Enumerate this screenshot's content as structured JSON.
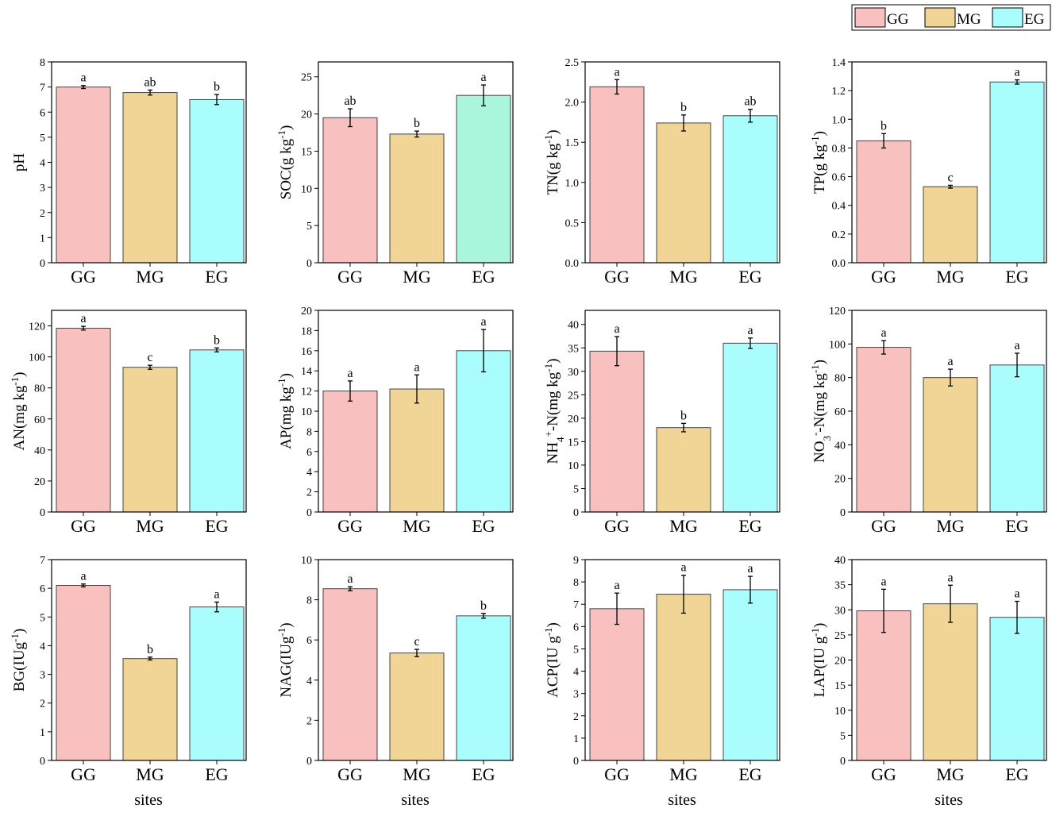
{
  "legend": {
    "entries": [
      {
        "label": "GG",
        "color": "#f9c0c0"
      },
      {
        "label": "MG",
        "color": "#f1d596"
      },
      {
        "label": "EG",
        "color": "#a9fdfd"
      }
    ]
  },
  "x_title": "sites",
  "chart_data": [
    {
      "type": "bar",
      "ylabel": "pH",
      "ylim": [
        0,
        8
      ],
      "yticks": [
        "0",
        "1",
        "2",
        "3",
        "4",
        "5",
        "6",
        "7",
        "8"
      ],
      "categories": [
        "GG",
        "MG",
        "EG"
      ],
      "values": [
        7.0,
        6.78,
        6.5
      ],
      "errors": [
        0.06,
        0.1,
        0.2
      ],
      "letters": [
        "a",
        "ab",
        "b"
      ]
    },
    {
      "type": "bar",
      "ylabel": "SOC(g kg",
      "ylabel_sup": "-1",
      "ylabel_end": ")",
      "ylim": [
        0,
        27
      ],
      "yticks": [
        "0",
        "5",
        "10",
        "15",
        "20",
        "25"
      ],
      "categories": [
        "GG",
        "MG",
        "EG"
      ],
      "values": [
        19.5,
        17.3,
        22.5
      ],
      "errors": [
        1.2,
        0.4,
        1.4
      ],
      "letters": [
        "ab",
        "b",
        "a"
      ],
      "colors": [
        "#f9c0c0",
        "#f1d596",
        "#a9f6dc"
      ]
    },
    {
      "type": "bar",
      "ylabel": "TN(g kg",
      "ylabel_sup": "-1",
      "ylabel_end": ")",
      "ylim": [
        0,
        2.5
      ],
      "yticks": [
        "0.0",
        "0.5",
        "1.0",
        "1.5",
        "2.0",
        "2.5"
      ],
      "categories": [
        "GG",
        "MG",
        "EG"
      ],
      "values": [
        2.19,
        1.74,
        1.83
      ],
      "errors": [
        0.09,
        0.1,
        0.08
      ],
      "letters": [
        "a",
        "b",
        "ab"
      ]
    },
    {
      "type": "bar",
      "ylabel": "TP(g kg",
      "ylabel_sup": "-1",
      "ylabel_end": ")",
      "ylim": [
        0,
        1.4
      ],
      "yticks": [
        "0.0",
        "0.2",
        "0.4",
        "0.6",
        "0.8",
        "1.0",
        "1.2",
        "1.4"
      ],
      "categories": [
        "GG",
        "MG",
        "EG"
      ],
      "values": [
        0.85,
        0.53,
        1.26
      ],
      "errors": [
        0.05,
        0.01,
        0.015
      ],
      "letters": [
        "b",
        "c",
        "a"
      ]
    },
    {
      "type": "bar",
      "ylabel": "AN(mg kg",
      "ylabel_sup": "-1",
      "ylabel_end": ")",
      "ylim": [
        0,
        130
      ],
      "yticks": [
        "0",
        "20",
        "40",
        "60",
        "80",
        "100",
        "120"
      ],
      "categories": [
        "GG",
        "MG",
        "EG"
      ],
      "values": [
        118.5,
        93.3,
        104.5
      ],
      "errors": [
        1.2,
        1.3,
        1.3
      ],
      "letters": [
        "a",
        "c",
        "b"
      ]
    },
    {
      "type": "bar",
      "ylabel": "AP(mg kg",
      "ylabel_sup": "-1",
      "ylabel_end": ")",
      "ylim": [
        0,
        20
      ],
      "yticks": [
        "0",
        "2",
        "4",
        "6",
        "8",
        "10",
        "12",
        "14",
        "16",
        "18",
        "20"
      ],
      "categories": [
        "GG",
        "MG",
        "EG"
      ],
      "values": [
        12.0,
        12.2,
        16.0
      ],
      "errors": [
        1.0,
        1.4,
        2.1
      ],
      "letters": [
        "a",
        "a",
        "a"
      ]
    },
    {
      "type": "bar",
      "ylabel": "NH",
      "ylabel_sub": "4",
      "ylabel_sup": "+",
      "ylabel_end": "-N(mg kg",
      "ylabel_sup2": "-1",
      "ylabel_end2": ")",
      "ylim": [
        0,
        43
      ],
      "yticks": [
        "0",
        "5",
        "10",
        "15",
        "20",
        "25",
        "30",
        "35",
        "40"
      ],
      "categories": [
        "GG",
        "MG",
        "EG"
      ],
      "values": [
        34.3,
        18.0,
        36.0
      ],
      "errors": [
        3.1,
        0.9,
        1.1
      ],
      "letters": [
        "a",
        "b",
        "a"
      ]
    },
    {
      "type": "bar",
      "ylabel": "NO",
      "ylabel_sub": "3",
      "ylabel_sup": "-",
      "ylabel_end": "-N(mg kg",
      "ylabel_sup2": "-1",
      "ylabel_end2": ")",
      "ylim": [
        0,
        120
      ],
      "yticks": [
        "0",
        "20",
        "40",
        "60",
        "80",
        "100",
        "120"
      ],
      "categories": [
        "GG",
        "MG",
        "EG"
      ],
      "values": [
        98.0,
        80.0,
        87.5
      ],
      "errors": [
        4.0,
        5.0,
        7.0
      ],
      "letters": [
        "a",
        "a",
        "a"
      ]
    },
    {
      "type": "bar",
      "ylabel": "BG(IUg",
      "ylabel_sup": "-1",
      "ylabel_end": ")",
      "ylim": [
        0,
        7
      ],
      "yticks": [
        "0",
        "1",
        "2",
        "3",
        "4",
        "5",
        "6",
        "7"
      ],
      "categories": [
        "GG",
        "MG",
        "EG"
      ],
      "values": [
        6.1,
        3.55,
        5.35
      ],
      "errors": [
        0.05,
        0.05,
        0.17
      ],
      "letters": [
        "a",
        "b",
        "a"
      ]
    },
    {
      "type": "bar",
      "ylabel": "NAG(IUg",
      "ylabel_sup": "-1",
      "ylabel_end": ")",
      "ylim": [
        0,
        10
      ],
      "yticks": [
        "0",
        "2",
        "4",
        "6",
        "8",
        "10"
      ],
      "categories": [
        "GG",
        "MG",
        "EG"
      ],
      "values": [
        8.55,
        5.35,
        7.2
      ],
      "errors": [
        0.1,
        0.18,
        0.12
      ],
      "letters": [
        "a",
        "c",
        "b"
      ]
    },
    {
      "type": "bar",
      "ylabel": "ACP(IU g",
      "ylabel_sup": "-1",
      "ylabel_end": ")",
      "ylim": [
        0,
        9
      ],
      "yticks": [
        "0",
        "1",
        "2",
        "3",
        "4",
        "5",
        "6",
        "7",
        "8",
        "9"
      ],
      "categories": [
        "GG",
        "MG",
        "EG"
      ],
      "values": [
        6.8,
        7.45,
        7.65
      ],
      "errors": [
        0.7,
        0.85,
        0.6
      ],
      "letters": [
        "a",
        "a",
        "a"
      ]
    },
    {
      "type": "bar",
      "ylabel": "LAP(IU g",
      "ylabel_sup": "-1",
      "ylabel_end": ")",
      "ylim": [
        0,
        40
      ],
      "yticks": [
        "0",
        "5",
        "10",
        "15",
        "20",
        "25",
        "30",
        "35",
        "40"
      ],
      "categories": [
        "GG",
        "MG",
        "EG"
      ],
      "values": [
        29.8,
        31.2,
        28.5
      ],
      "errors": [
        4.3,
        3.7,
        3.2
      ],
      "letters": [
        "a",
        "a",
        "a"
      ]
    }
  ]
}
